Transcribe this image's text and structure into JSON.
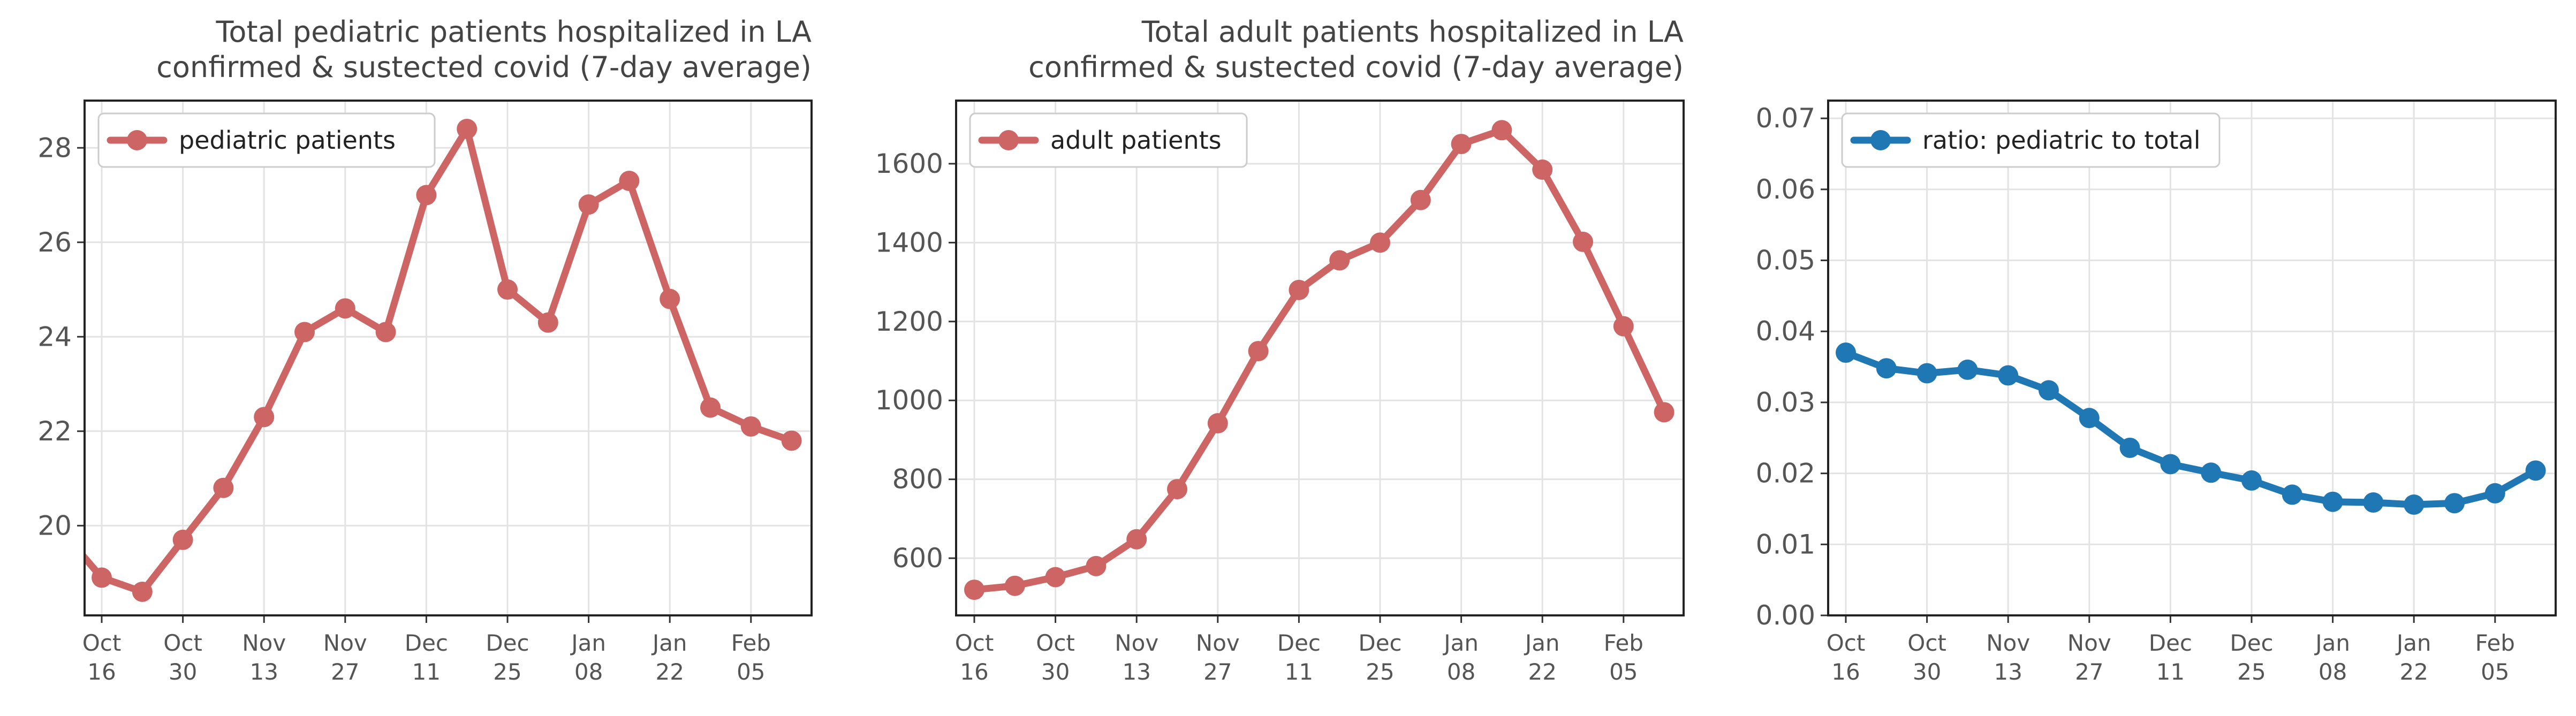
{
  "chart_data": [
    {
      "type": "line",
      "title": [
        "Total pediatric patients hospitalized in LA",
        "confirmed & sustected covid (7-day average)"
      ],
      "x": [
        "Oct 12",
        "Oct 16",
        "Oct 23",
        "Oct 30",
        "Nov 06",
        "Nov 13",
        "Nov 20",
        "Nov 27",
        "Dec 04",
        "Dec 11",
        "Dec 18",
        "Dec 25",
        "Jan 01",
        "Jan 08",
        "Jan 15",
        "Jan 22",
        "Jan 29",
        "Feb 05",
        "Feb 12"
      ],
      "x_ticks": [
        [
          "Oct",
          "16"
        ],
        [
          "Oct",
          "30"
        ],
        [
          "Nov",
          "13"
        ],
        [
          "Nov",
          "27"
        ],
        [
          "Dec",
          "11"
        ],
        [
          "Dec",
          "25"
        ],
        [
          "Jan",
          "08"
        ],
        [
          "Jan",
          "22"
        ],
        [
          "Feb",
          "05"
        ]
      ],
      "series": [
        {
          "name": "pediatric patients",
          "color": "#cd6565",
          "values": [
            19.9,
            18.9,
            18.6,
            19.7,
            20.8,
            22.3,
            24.1,
            24.6,
            24.1,
            27.0,
            28.4,
            25.0,
            24.3,
            26.8,
            27.3,
            24.8,
            22.5,
            22.1,
            21.8
          ]
        }
      ],
      "ylim": [
        18.1,
        29.0
      ],
      "yticks": [
        20,
        22,
        24,
        26,
        28
      ],
      "ytick_labels": [
        "20",
        "22",
        "24",
        "26",
        "28"
      ],
      "grid": true,
      "legend": "top-left"
    },
    {
      "type": "line",
      "title": [
        "Total adult patients hospitalized in LA",
        "confirmed & sustected covid (7-day average)"
      ],
      "x": [
        "Oct 16",
        "Oct 23",
        "Oct 30",
        "Nov 06",
        "Nov 13",
        "Nov 20",
        "Nov 27",
        "Dec 04",
        "Dec 11",
        "Dec 18",
        "Dec 25",
        "Jan 01",
        "Jan 08",
        "Jan 15",
        "Jan 22",
        "Jan 29",
        "Feb 05",
        "Feb 12"
      ],
      "x_ticks": [
        [
          "Oct",
          "16"
        ],
        [
          "Oct",
          "30"
        ],
        [
          "Nov",
          "13"
        ],
        [
          "Nov",
          "27"
        ],
        [
          "Dec",
          "11"
        ],
        [
          "Dec",
          "25"
        ],
        [
          "Jan",
          "08"
        ],
        [
          "Jan",
          "22"
        ],
        [
          "Feb",
          "05"
        ]
      ],
      "series": [
        {
          "name": "adult patients",
          "color": "#cd6565",
          "values": [
            520,
            530,
            552,
            580,
            648,
            775,
            942,
            1125,
            1280,
            1355,
            1400,
            1508,
            1650,
            1685,
            1585,
            1402,
            1188,
            970
          ]
        }
      ],
      "ylim": [
        455,
        1760
      ],
      "yticks": [
        600,
        800,
        1000,
        1200,
        1400,
        1600
      ],
      "ytick_labels": [
        "600",
        "800",
        "1000",
        "1200",
        "1400",
        "1600"
      ],
      "grid": true,
      "legend": "top-left"
    },
    {
      "type": "line",
      "title": [],
      "x": [
        "Oct 16",
        "Oct 23",
        "Oct 30",
        "Nov 06",
        "Nov 13",
        "Nov 20",
        "Nov 27",
        "Dec 04",
        "Dec 11",
        "Dec 18",
        "Dec 25",
        "Jan 01",
        "Jan 08",
        "Jan 15",
        "Jan 22",
        "Jan 29",
        "Feb 05",
        "Feb 12"
      ],
      "x_ticks": [
        [
          "Oct",
          "16"
        ],
        [
          "Oct",
          "30"
        ],
        [
          "Nov",
          "13"
        ],
        [
          "Nov",
          "27"
        ],
        [
          "Dec",
          "11"
        ],
        [
          "Dec",
          "25"
        ],
        [
          "Jan",
          "08"
        ],
        [
          "Jan",
          "22"
        ],
        [
          "Feb",
          "05"
        ]
      ],
      "series": [
        {
          "name": "ratio: pediatric to total",
          "color": "#1f77b4",
          "values": [
            0.037,
            0.0348,
            0.0341,
            0.0346,
            0.0338,
            0.0317,
            0.0278,
            0.0236,
            0.0213,
            0.0201,
            0.019,
            0.017,
            0.016,
            0.0159,
            0.0156,
            0.0158,
            0.0172,
            0.0204
          ]
        }
      ],
      "ylim": [
        0,
        0.0725
      ],
      "yticks": [
        0,
        0.01,
        0.02,
        0.03,
        0.04,
        0.05,
        0.06,
        0.07
      ],
      "ytick_labels": [
        "0.00",
        "0.01",
        "0.02",
        "0.03",
        "0.04",
        "0.05",
        "0.06",
        "0.07"
      ],
      "grid": true,
      "legend": "top-left"
    }
  ]
}
